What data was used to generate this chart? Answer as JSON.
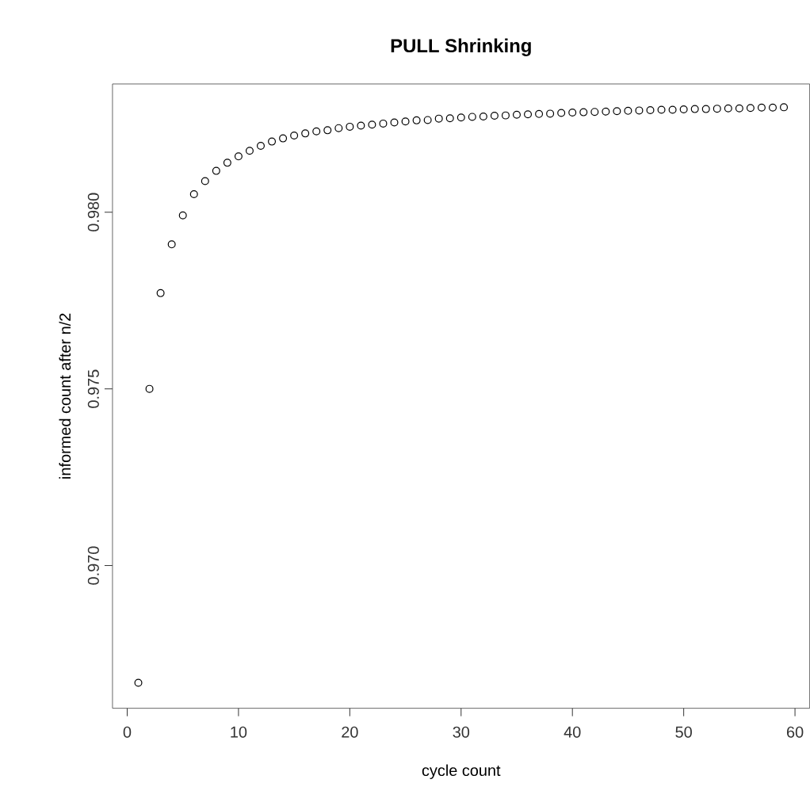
{
  "chart_data": {
    "type": "scatter",
    "title": "PULL Shrinking",
    "xlabel": "cycle count",
    "ylabel": "informed count after n/2",
    "x": [
      1,
      2,
      3,
      4,
      5,
      6,
      7,
      8,
      9,
      10,
      11,
      12,
      13,
      14,
      15,
      16,
      17,
      18,
      19,
      20,
      21,
      22,
      23,
      24,
      25,
      26,
      27,
      28,
      29,
      30,
      31,
      32,
      33,
      34,
      35,
      36,
      37,
      38,
      39,
      40,
      41,
      42,
      43,
      44,
      45,
      46,
      47,
      48,
      49,
      50,
      51,
      52,
      53,
      54,
      55,
      56,
      57,
      58,
      59
    ],
    "series": [
      {
        "color": "#000000",
        "values": [
          0.96668,
          0.975,
          0.97771,
          0.97909,
          0.97991,
          0.98051,
          0.98088,
          0.98117,
          0.9814,
          0.98158,
          0.98174,
          0.98188,
          0.982,
          0.98209,
          0.98217,
          0.98223,
          0.98229,
          0.98232,
          0.98238,
          0.98242,
          0.98245,
          0.98248,
          0.98251,
          0.98254,
          0.98257,
          0.9826,
          0.98261,
          0.98265,
          0.98266,
          0.98268,
          0.9827,
          0.98271,
          0.98273,
          0.98274,
          0.98276,
          0.98277,
          0.98278,
          0.98279,
          0.98281,
          0.98282,
          0.98283,
          0.98284,
          0.98285,
          0.98286,
          0.98287,
          0.98288,
          0.98289,
          0.9829,
          0.9829,
          0.98291,
          0.98292,
          0.98292,
          0.98293,
          0.98294,
          0.98294,
          0.98295,
          0.98296,
          0.98296,
          0.98297
        ]
      }
    ],
    "marker": "circle",
    "xlim": [
      -1.32,
      61.32
    ],
    "ylim": [
      0.96596,
      0.98363
    ],
    "xticks": [
      0,
      10,
      20,
      30,
      40,
      50,
      60
    ],
    "yticks": [
      {
        "value": 0.97,
        "label": "0.970"
      },
      {
        "value": 0.975,
        "label": "0.975"
      },
      {
        "value": 0.98,
        "label": "0.980"
      }
    ]
  }
}
